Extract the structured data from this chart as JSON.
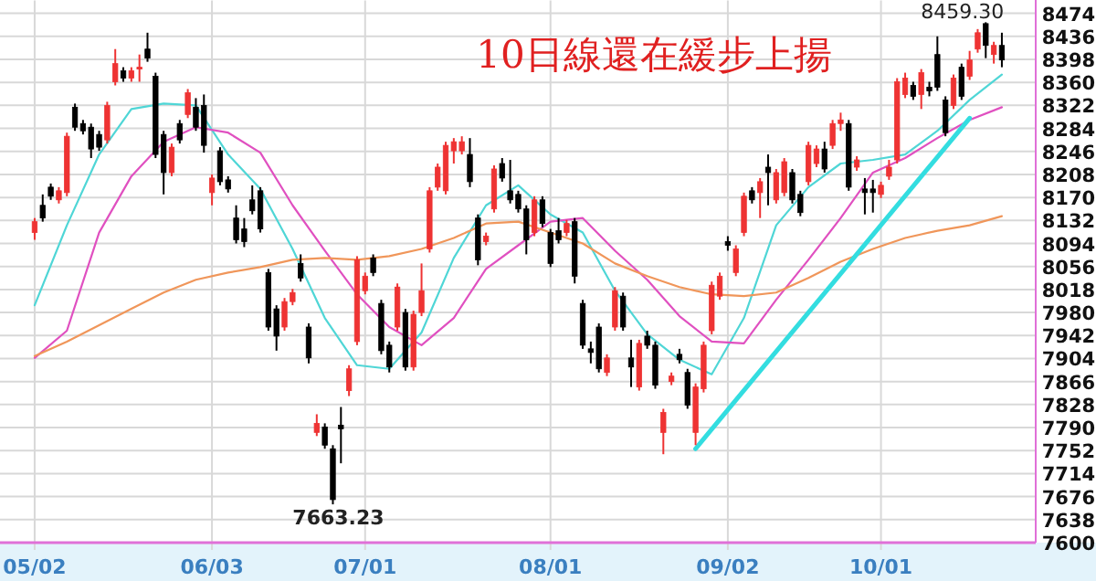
{
  "chart_data": {
    "type": "candlestick",
    "title": "10日線還在緩步上揚",
    "categories": [
      "05/02",
      null,
      null,
      null,
      null,
      null,
      null,
      null,
      null,
      null,
      null,
      null,
      null,
      null,
      null,
      null,
      null,
      null,
      null,
      null,
      null,
      null,
      "06/03",
      null,
      null,
      null,
      null,
      null,
      null,
      null,
      null,
      null,
      null,
      null,
      null,
      null,
      null,
      null,
      null,
      null,
      null,
      "07/01",
      null,
      null,
      null,
      null,
      null,
      null,
      null,
      null,
      null,
      null,
      null,
      null,
      null,
      null,
      null,
      null,
      null,
      null,
      null,
      null,
      null,
      null,
      "08/01",
      null,
      null,
      null,
      null,
      null,
      null,
      null,
      null,
      null,
      null,
      null,
      null,
      null,
      null,
      null,
      null,
      null,
      null,
      null,
      null,
      null,
      "09/02",
      null,
      null,
      null,
      null,
      null,
      null,
      null,
      null,
      null,
      null,
      null,
      null,
      null,
      null,
      null,
      null,
      null,
      null,
      "10/01",
      null,
      null,
      null,
      null,
      null,
      null,
      null,
      null,
      null,
      null,
      null,
      null,
      null,
      null,
      null
    ],
    "ohlc": [
      [
        8112,
        8136,
        8100,
        8130
      ],
      [
        8157,
        8175,
        8130,
        8136
      ],
      [
        8187,
        8193,
        8166,
        8172
      ],
      [
        8166,
        8187,
        8160,
        8181
      ],
      [
        8178,
        8277,
        8172,
        8271
      ],
      [
        8319,
        8325,
        8280,
        8286
      ],
      [
        8292,
        8298,
        8274,
        8280
      ],
      [
        8286,
        8292,
        8235,
        8250
      ],
      [
        8274,
        8280,
        8247,
        8253
      ],
      [
        8265,
        8328,
        8259,
        8322
      ],
      [
        8361,
        8415,
        8355,
        8391
      ],
      [
        8379,
        8385,
        8361,
        8367
      ],
      [
        8367,
        8385,
        8361,
        8379
      ],
      [
        8382,
        8406,
        8361,
        8385
      ],
      [
        8415,
        8442,
        8394,
        8400
      ],
      [
        8370,
        8376,
        8235,
        8241
      ],
      [
        8274,
        8280,
        8175,
        8211
      ],
      [
        8211,
        8259,
        8205,
        8253
      ],
      [
        8292,
        8298,
        8259,
        8265
      ],
      [
        8307,
        8349,
        8301,
        8343
      ],
      [
        8319,
        8334,
        8280,
        8286
      ],
      [
        8322,
        8340,
        8244,
        8256
      ],
      [
        8178,
        8208,
        8157,
        8202
      ],
      [
        8247,
        8253,
        8190,
        8196
      ],
      [
        8199,
        8205,
        8178,
        8184
      ],
      [
        8136,
        8157,
        8094,
        8100
      ],
      [
        8118,
        8136,
        8088,
        8097
      ],
      [
        8166,
        8190,
        8142,
        8148
      ],
      [
        8181,
        8187,
        8112,
        8118
      ],
      [
        8046,
        8052,
        7950,
        7956
      ],
      [
        7986,
        7992,
        7917,
        7941
      ],
      [
        7956,
        8004,
        7950,
        7998
      ],
      [
        7998,
        8019,
        7992,
        8013
      ],
      [
        8061,
        8076,
        8031,
        8037
      ],
      [
        7956,
        7962,
        7896,
        7905
      ],
      [
        7782,
        7812,
        7776,
        7797
      ],
      [
        7791,
        7797,
        7755,
        7761
      ],
      [
        7755,
        7761,
        7663.23,
        7671
      ],
      [
        7794,
        7824,
        7731,
        7788
      ],
      [
        7851,
        7893,
        7842,
        7887
      ],
      [
        7932,
        8073,
        7926,
        8067
      ],
      [
        8016,
        8046,
        8010,
        8040
      ],
      [
        8070,
        8076,
        8040,
        8046
      ],
      [
        7995,
        8001,
        7911,
        7917
      ],
      [
        7926,
        7932,
        7881,
        7890
      ],
      [
        7956,
        8028,
        7950,
        8022
      ],
      [
        7980,
        7986,
        7884,
        7890
      ],
      [
        7890,
        7983,
        7884,
        7977
      ],
      [
        7980,
        8061,
        7974,
        8016
      ],
      [
        8085,
        8187,
        8079,
        8181
      ],
      [
        8187,
        8226,
        8181,
        8220
      ],
      [
        8181,
        8262,
        8175,
        8256
      ],
      [
        8247,
        8268,
        8226,
        8262
      ],
      [
        8247,
        8271,
        8241,
        8262
      ],
      [
        8241,
        8268,
        8187,
        8196
      ],
      [
        8136,
        8142,
        8058,
        8067
      ],
      [
        8097,
        8112,
        8091,
        8106
      ],
      [
        8151,
        8223,
        8145,
        8217
      ],
      [
        8226,
        8235,
        8196,
        8202
      ],
      [
        8181,
        8232,
        8160,
        8166
      ],
      [
        8175,
        8181,
        8145,
        8151
      ],
      [
        8151,
        8157,
        8076,
        8100
      ],
      [
        8112,
        8172,
        8106,
        8166
      ],
      [
        8166,
        8172,
        8121,
        8127
      ],
      [
        8112,
        8118,
        8055,
        8061
      ],
      [
        8115,
        8136,
        8094,
        8100
      ],
      [
        8112,
        8133,
        8106,
        8127
      ],
      [
        8130,
        8136,
        8028,
        8040
      ],
      [
        7995,
        8001,
        7920,
        7926
      ],
      [
        7920,
        7932,
        7896,
        7914
      ],
      [
        7956,
        7962,
        7881,
        7887
      ],
      [
        7881,
        7911,
        7875,
        7905
      ],
      [
        7956,
        8022,
        7950,
        8016
      ],
      [
        8007,
        8013,
        7950,
        7956
      ],
      [
        7905,
        7935,
        7857,
        7890
      ],
      [
        7857,
        7935,
        7851,
        7929
      ],
      [
        7941,
        7950,
        7920,
        7926
      ],
      [
        7926,
        7932,
        7854,
        7860
      ],
      [
        7782,
        7821,
        7746,
        7815
      ],
      [
        7866,
        7881,
        7860,
        7875
      ],
      [
        7911,
        7920,
        7896,
        7902
      ],
      [
        7881,
        7887,
        7821,
        7827
      ],
      [
        7782,
        7863,
        7761,
        7857
      ],
      [
        7854,
        7932,
        7848,
        7926
      ],
      [
        7950,
        8031,
        7944,
        8025
      ],
      [
        8007,
        8046,
        8001,
        8040
      ],
      [
        8097,
        8106,
        8082,
        8091
      ],
      [
        8046,
        8091,
        8040,
        8085
      ],
      [
        8112,
        8178,
        8106,
        8172
      ],
      [
        8181,
        8187,
        8160,
        8166
      ],
      [
        8178,
        8202,
        8136,
        8196
      ],
      [
        8220,
        8241,
        8157,
        8211
      ],
      [
        8166,
        8217,
        8160,
        8211
      ],
      [
        8178,
        8235,
        8172,
        8229
      ],
      [
        8211,
        8217,
        8160,
        8166
      ],
      [
        8175,
        8181,
        8139,
        8145
      ],
      [
        8196,
        8262,
        8190,
        8256
      ],
      [
        8226,
        8256,
        8220,
        8250
      ],
      [
        8250,
        8262,
        8211,
        8217
      ],
      [
        8256,
        8298,
        8250,
        8292
      ],
      [
        8292,
        8310,
        8280,
        8298
      ],
      [
        8292,
        8298,
        8181,
        8187
      ],
      [
        8220,
        8238,
        8214,
        8232
      ],
      [
        8184,
        8202,
        8142,
        8178
      ],
      [
        8184,
        8199,
        8145,
        8178
      ],
      [
        8175,
        8196,
        8169,
        8190
      ],
      [
        8205,
        8232,
        8199,
        8220
      ],
      [
        8232,
        8367,
        8226,
        8361
      ],
      [
        8340,
        8376,
        8334,
        8367
      ],
      [
        8355,
        8361,
        8331,
        8337
      ],
      [
        8340,
        8382,
        8316,
        8376
      ],
      [
        8352,
        8361,
        8337,
        8346
      ],
      [
        8406,
        8436,
        8346,
        8352
      ],
      [
        8331,
        8337,
        8271,
        8277
      ],
      [
        8322,
        8373,
        8316,
        8367
      ],
      [
        8385,
        8391,
        8331,
        8337
      ],
      [
        8370,
        8412,
        8364,
        8397
      ],
      [
        8415,
        8448,
        8409,
        8442
      ],
      [
        8457,
        8459.3,
        8400,
        8421
      ],
      [
        8406,
        8427,
        8391,
        8421
      ],
      [
        8421,
        8442,
        8385,
        8397
      ]
    ],
    "colors": [
      "#ee3333",
      "#000000",
      "#000000",
      "#ee3333",
      "#ee3333",
      "#000000",
      "#000000",
      "#000000",
      "#000000",
      "#ee3333",
      "#ee3333",
      "#000000",
      "#ee3333",
      "#ee3333",
      "#000000",
      "#000000",
      "#000000",
      "#ee3333",
      "#000000",
      "#ee3333",
      "#000000",
      "#000000",
      "#ee3333",
      "#000000",
      "#000000",
      "#000000",
      "#000000",
      "#000000",
      "#000000",
      "#000000",
      "#000000",
      "#ee3333",
      "#ee3333",
      "#000000",
      "#000000",
      "#ee3333",
      "#000000",
      "#000000",
      "#000000",
      "#ee3333",
      "#ee3333",
      "#ee3333",
      "#000000",
      "#000000",
      "#000000",
      "#ee3333",
      "#000000",
      "#ee3333",
      "#ee3333",
      "#ee3333",
      "#ee3333",
      "#ee3333",
      "#ee3333",
      "#ee3333",
      "#000000",
      "#000000",
      "#ee3333",
      "#ee3333",
      "#000000",
      "#000000",
      "#000000",
      "#000000",
      "#ee3333",
      "#000000",
      "#000000",
      "#000000",
      "#ee3333",
      "#000000",
      "#000000",
      "#000000",
      "#000000",
      "#ee3333",
      "#ee3333",
      "#000000",
      "#000000",
      "#ee3333",
      "#000000",
      "#000000",
      "#ee3333",
      "#ee3333",
      "#000000",
      "#000000",
      "#ee3333",
      "#ee3333",
      "#ee3333",
      "#ee3333",
      "#000000",
      "#ee3333",
      "#ee3333",
      "#000000",
      "#ee3333",
      "#000000",
      "#ee3333",
      "#ee3333",
      "#000000",
      "#000000",
      "#ee3333",
      "#ee3333",
      "#000000",
      "#ee3333",
      "#ee3333",
      "#000000",
      "#ee3333",
      "#000000",
      "#000000",
      "#ee3333",
      "#ee3333",
      "#ee3333",
      "#ee3333",
      "#000000",
      "#ee3333",
      "#000000",
      "#000000",
      "#000000",
      "#ee3333",
      "#000000",
      "#ee3333",
      "#ee3333",
      "#000000",
      "#ee3333",
      "#000000"
    ],
    "series": [
      {
        "type": "line",
        "color": "#4fd6d6",
        "values": [
          7992,
          null,
          null,
          null,
          8124,
          null,
          null,
          null,
          8241,
          null,
          null,
          null,
          8316,
          null,
          null,
          null,
          8325,
          null,
          null,
          null,
          8322,
          null,
          null,
          null,
          8241,
          null,
          null,
          null,
          8184,
          null,
          null,
          null,
          8085,
          null,
          null,
          null,
          7971,
          null,
          null,
          null,
          7893,
          null,
          null,
          null,
          7887,
          null,
          null,
          null,
          7947,
          null,
          null,
          null,
          8070,
          null,
          null,
          null,
          8157,
          null,
          null,
          null,
          8190,
          null,
          null,
          null,
          8142,
          null,
          null,
          null,
          8112,
          null,
          null,
          null,
          8016,
          null,
          null,
          null,
          7944,
          null,
          null,
          null,
          7902,
          null,
          null,
          null,
          7878,
          null,
          null,
          null,
          7971,
          null,
          null,
          null,
          8124,
          null,
          null,
          null,
          8187,
          null,
          null,
          null,
          8226,
          null,
          null,
          null,
          8232,
          null,
          null,
          null,
          8241,
          null,
          null,
          null,
          8280,
          null,
          null,
          null,
          8331,
          null,
          null,
          null,
          8373
        ]
      },
      {
        "type": "line",
        "color": "#e050c0",
        "values": [
          7905,
          null,
          null,
          null,
          7950,
          null,
          null,
          null,
          8112,
          null,
          null,
          null,
          8205,
          null,
          null,
          null,
          8262,
          null,
          null,
          null,
          8286,
          null,
          null,
          null,
          8277,
          null,
          null,
          null,
          8244,
          null,
          null,
          null,
          8157,
          null,
          null,
          null,
          8082,
          null,
          null,
          null,
          8010,
          null,
          null,
          null,
          7956,
          null,
          null,
          null,
          7926,
          null,
          null,
          null,
          7971,
          null,
          null,
          null,
          8052,
          null,
          null,
          null,
          8091,
          null,
          null,
          null,
          8130,
          null,
          null,
          null,
          8136,
          null,
          null,
          null,
          8082,
          null,
          null,
          null,
          8034,
          null,
          null,
          null,
          7974,
          null,
          null,
          null,
          7932,
          null,
          null,
          null,
          7929,
          null,
          null,
          null,
          8001,
          null,
          null,
          null,
          8067,
          null,
          null,
          null,
          8136,
          null,
          null,
          null,
          8211,
          null,
          null,
          null,
          8235,
          null,
          null,
          null,
          8268,
          null,
          null,
          null,
          8298,
          null,
          null,
          null,
          8319
        ]
      },
      {
        "type": "line",
        "color": "#f0965a",
        "values": [
          7908,
          null,
          null,
          null,
          7932,
          null,
          null,
          null,
          7959,
          null,
          null,
          null,
          7986,
          null,
          null,
          null,
          8013,
          null,
          null,
          null,
          8034,
          null,
          null,
          null,
          8046,
          null,
          null,
          null,
          8055,
          null,
          null,
          null,
          8067,
          null,
          null,
          null,
          8070,
          null,
          null,
          null,
          8067,
          null,
          null,
          null,
          8073,
          null,
          null,
          null,
          8085,
          null,
          null,
          null,
          8103,
          null,
          null,
          null,
          8127,
          null,
          null,
          null,
          8130,
          null,
          null,
          null,
          8112,
          null,
          null,
          null,
          8094,
          null,
          null,
          null,
          8061,
          null,
          null,
          null,
          8040,
          null,
          null,
          null,
          8022,
          null,
          null,
          null,
          8010,
          null,
          null,
          null,
          8007,
          null,
          null,
          null,
          8013,
          null,
          null,
          null,
          8037,
          null,
          null,
          null,
          8064,
          null,
          null,
          null,
          8085,
          null,
          null,
          null,
          8103,
          null,
          null,
          null,
          8115,
          null,
          null,
          null,
          8124,
          null,
          null,
          null,
          8139
        ]
      },
      {
        "type": "line",
        "color": "#33dde0",
        "values": [
          null,
          null,
          null,
          null,
          null,
          null,
          null,
          null,
          null,
          null,
          null,
          null,
          null,
          null,
          null,
          null,
          null,
          null,
          null,
          null,
          null,
          null,
          null,
          null,
          null,
          null,
          null,
          null,
          null,
          null,
          null,
          null,
          null,
          null,
          null,
          null,
          null,
          null,
          null,
          null,
          null,
          null,
          null,
          null,
          null,
          null,
          null,
          null,
          null,
          null,
          null,
          null,
          null,
          null,
          null,
          null,
          null,
          null,
          null,
          null,
          null,
          null,
          null,
          null,
          null,
          null,
          null,
          null,
          null,
          null,
          null,
          null,
          null,
          null,
          null,
          null,
          null,
          null,
          null,
          null,
          null,
          null,
          7755,
          null,
          null,
          null,
          null,
          null,
          null,
          null,
          null,
          null,
          null,
          null,
          null,
          null,
          null,
          null,
          null,
          null,
          null,
          null,
          null,
          null,
          null,
          null,
          null,
          null,
          null,
          null,
          null,
          null,
          null,
          null,
          null,
          null,
          8301,
          null,
          null,
          null,
          null
        ]
      }
    ],
    "annotations": [
      "8459.30",
      "7663.23"
    ],
    "ylim": [
      7600,
      8474
    ],
    "yticks": [
      7600,
      7638,
      7676,
      7714,
      7752,
      7790,
      7828,
      7866,
      7904,
      7942,
      7980,
      8018,
      8056,
      8094,
      8132,
      8170,
      8208,
      8246,
      8284,
      8322,
      8360,
      8398,
      8436,
      8474
    ],
    "grid": true
  }
}
